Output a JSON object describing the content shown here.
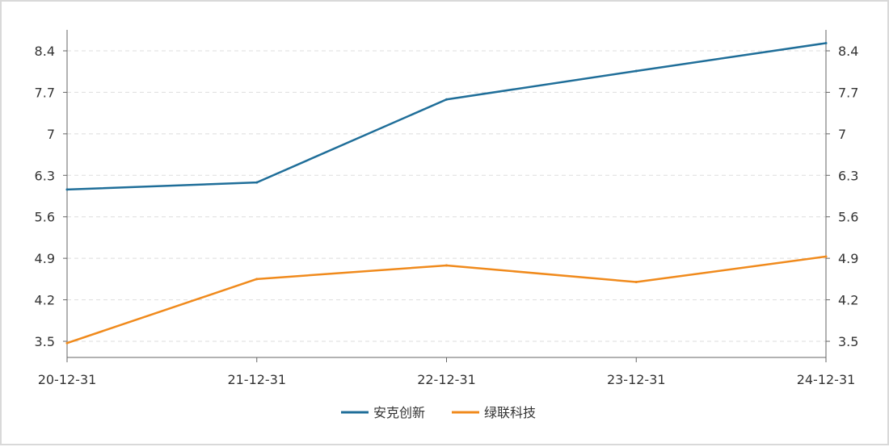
{
  "chart_data": {
    "type": "line",
    "title": "",
    "xlabel": "",
    "ylabel": "",
    "categories": [
      "20-12-31",
      "21-12-31",
      "22-12-31",
      "23-12-31",
      "24-12-31"
    ],
    "series": [
      {
        "name": "安克创新",
        "color": "#1f6e99",
        "values": [
          6.06,
          6.18,
          7.58,
          8.06,
          8.53
        ]
      },
      {
        "name": "绿联科技",
        "color": "#f08a1c",
        "values": [
          3.47,
          4.55,
          4.78,
          4.5,
          4.93
        ]
      }
    ],
    "y_ticks": [
      "3.5",
      "4.2",
      "4.9",
      "5.6",
      "6.3",
      "7",
      "7.7",
      "8.4"
    ],
    "ylim": [
      3.5,
      8.4
    ],
    "grid": true,
    "secondary_y_axis": true,
    "legend_position": "bottom-center"
  }
}
